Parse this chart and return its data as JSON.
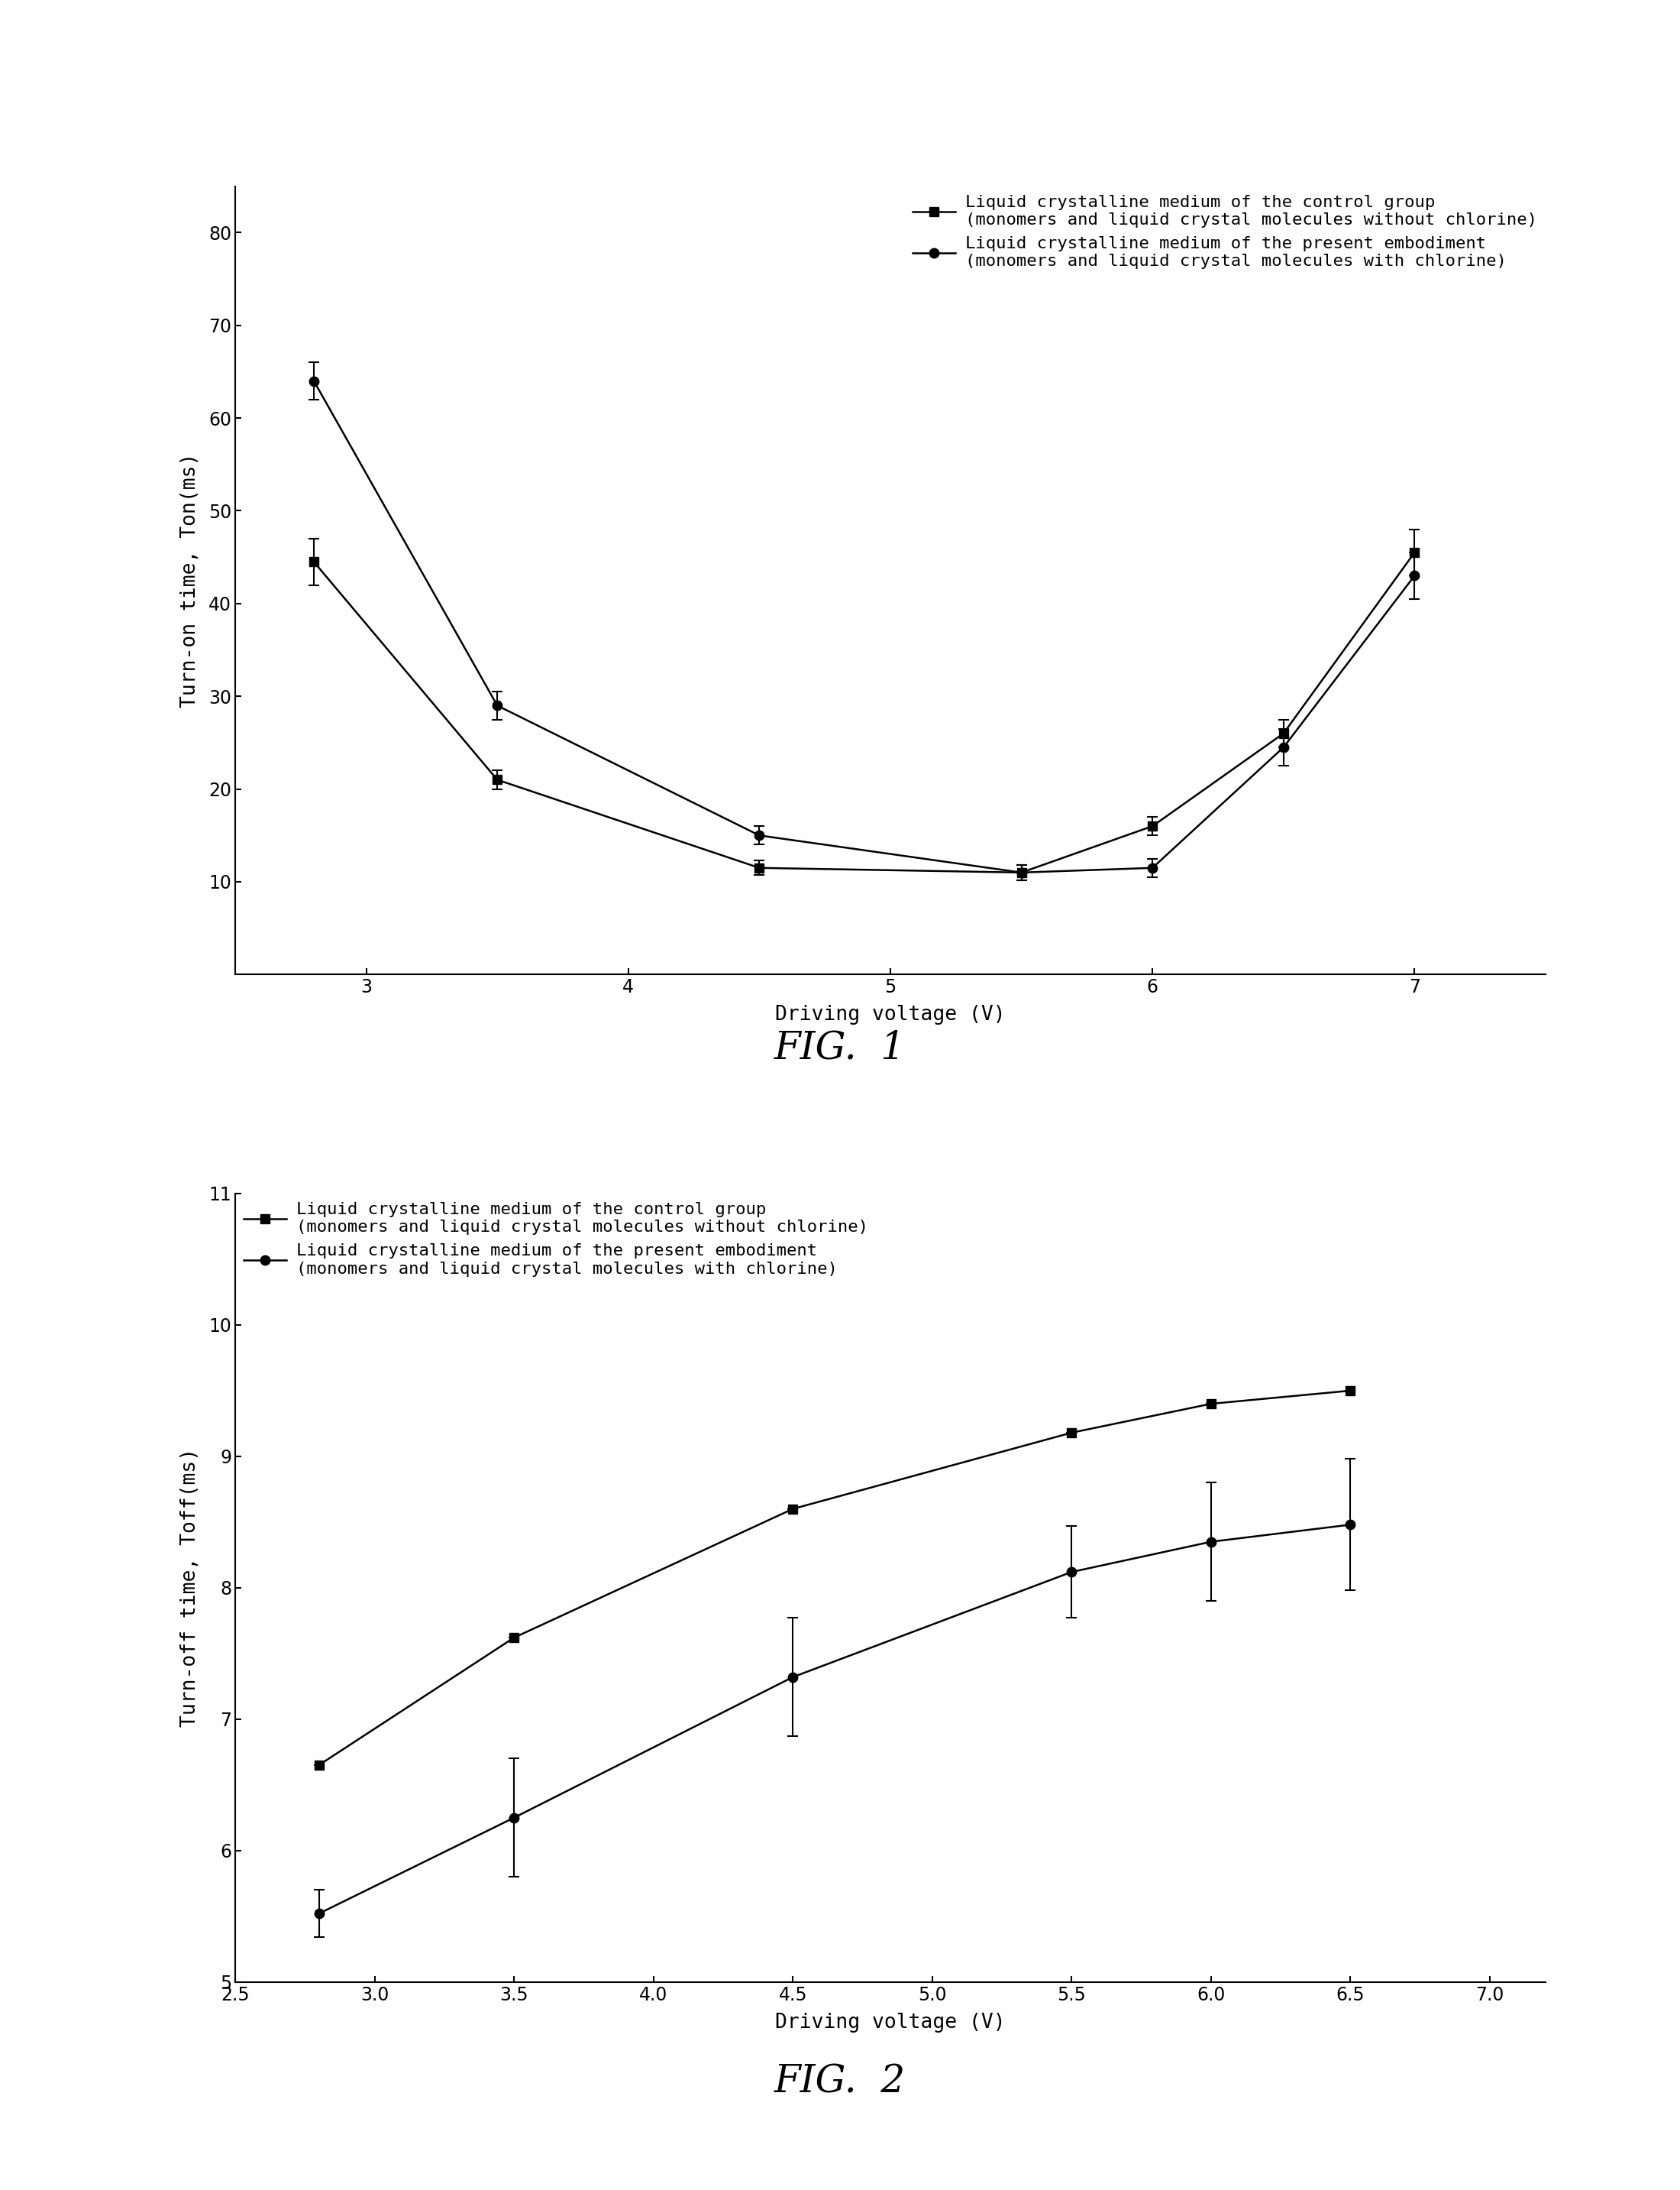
{
  "fig1": {
    "title": "FIG.  1",
    "xlabel": "Driving voltage (V)",
    "ylabel": "Turn-on time, Ton(ms)",
    "xlim": [
      2.5,
      7.5
    ],
    "ylim": [
      0,
      85
    ],
    "xticks": [
      3,
      4,
      5,
      6,
      7
    ],
    "yticks": [
      10,
      20,
      30,
      40,
      50,
      60,
      70,
      80
    ],
    "control_x": [
      2.8,
      3.5,
      4.5,
      5.5,
      6.0,
      6.5,
      7.0
    ],
    "control_y": [
      44.5,
      21.0,
      11.5,
      11.0,
      16.0,
      26.0,
      45.5
    ],
    "control_yerr": [
      2.5,
      1.0,
      0.8,
      0.8,
      1.0,
      1.5,
      2.5
    ],
    "present_x": [
      2.8,
      3.5,
      4.5,
      5.5,
      6.0,
      6.5,
      7.0
    ],
    "present_y": [
      64.0,
      29.0,
      15.0,
      11.0,
      11.5,
      24.5,
      43.0
    ],
    "present_yerr": [
      2.0,
      1.5,
      1.0,
      0.8,
      1.0,
      2.0,
      2.5
    ],
    "legend1_line1": "Liquid crystalline medium of the control group",
    "legend1_line2": "(monomers and liquid crystal molecules without chlorine)",
    "legend2_line1": "Liquid crystalline medium of the present embodiment",
    "legend2_line2": "(monomers and liquid crystal molecules with chlorine)"
  },
  "fig2": {
    "title": "FIG.  2",
    "xlabel": "Driving voltage (V)",
    "ylabel": "Turn-off time, Toff(ms)",
    "xlim": [
      2.5,
      7.2
    ],
    "ylim": [
      5,
      11
    ],
    "xticks": [
      2.5,
      3.0,
      3.5,
      4.0,
      4.5,
      5.0,
      5.5,
      6.0,
      6.5,
      7.0
    ],
    "yticks": [
      5,
      6,
      7,
      8,
      9,
      10,
      11
    ],
    "control_x": [
      2.8,
      3.5,
      4.5,
      5.5,
      6.0,
      6.5
    ],
    "control_y": [
      6.65,
      7.62,
      8.6,
      9.18,
      9.4,
      9.5
    ],
    "control_yerr": [
      0.0,
      0.0,
      0.0,
      0.0,
      0.0,
      0.0
    ],
    "present_x": [
      2.8,
      3.5,
      4.5,
      5.5,
      6.0,
      6.5
    ],
    "present_y": [
      5.52,
      6.25,
      7.32,
      8.12,
      8.35,
      8.48
    ],
    "present_yerr": [
      0.18,
      0.45,
      0.45,
      0.35,
      0.45,
      0.5
    ],
    "legend1_line1": "Liquid crystalline medium of the control group",
    "legend1_line2": "(monomers and liquid crystal molecules without chlorine)",
    "legend2_line1": "Liquid crystalline medium of the present embodiment",
    "legend2_line2": "(monomers and liquid crystal molecules with chlorine)"
  },
  "background_color": "#ffffff",
  "line_color": "#000000",
  "font_family": "DejaVu Sans Mono"
}
